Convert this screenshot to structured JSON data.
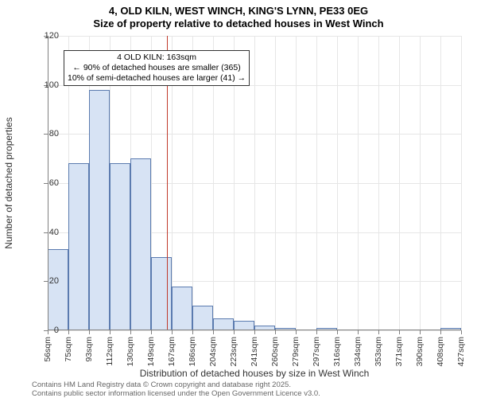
{
  "title_line1": "4, OLD KILN, WEST WINCH, KING'S LYNN, PE33 0EG",
  "title_line2": "Size of property relative to detached houses in West Winch",
  "ylabel": "Number of detached properties",
  "xlabel": "Distribution of detached houses by size in West Winch",
  "chart": {
    "type": "histogram",
    "ylim": [
      0,
      120
    ],
    "yticks": [
      0,
      20,
      40,
      60,
      80,
      100,
      120
    ],
    "xtick_labels": [
      "56sqm",
      "75sqm",
      "93sqm",
      "112sqm",
      "130sqm",
      "149sqm",
      "167sqm",
      "186sqm",
      "204sqm",
      "223sqm",
      "241sqm",
      "260sqm",
      "279sqm",
      "297sqm",
      "316sqm",
      "334sqm",
      "353sqm",
      "371sqm",
      "390sqm",
      "408sqm",
      "427sqm"
    ],
    "values": [
      33,
      68,
      98,
      68,
      70,
      30,
      18,
      10,
      5,
      4,
      2,
      1,
      0,
      1,
      0,
      0,
      0,
      0,
      0,
      1
    ],
    "bar_fill": "#d7e3f4",
    "bar_stroke": "#5b7baf",
    "grid_color": "#e6e6e6",
    "axis_color": "#808080",
    "background_color": "#ffffff",
    "refline": {
      "bin_edge_index": 5.78,
      "color": "#c0392b"
    }
  },
  "annotation": {
    "line1": "4 OLD KILN: 163sqm",
    "line2": "← 90% of detached houses are smaller (365)",
    "line3": "10% of semi-detached houses are larger (41) →",
    "border_color": "#333333",
    "bg_color": "#ffffff",
    "fontsize": 10.5
  },
  "footer": {
    "line1": "Contains HM Land Registry data © Crown copyright and database right 2025.",
    "line2": "Contains public sector information licensed under the Open Government Licence v3.0."
  }
}
